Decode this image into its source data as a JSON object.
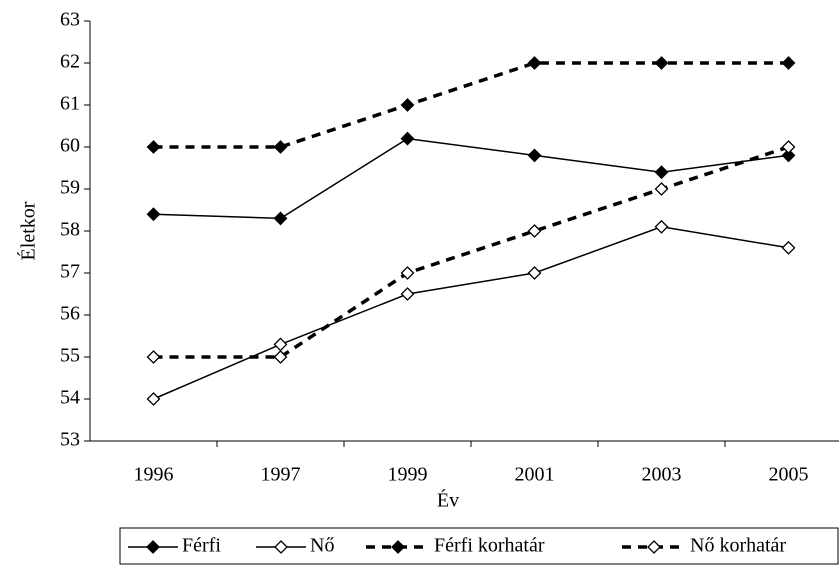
{
  "chart_data": {
    "type": "line",
    "categories": [
      "1996",
      "1997",
      "1999",
      "2001",
      "2003",
      "2005"
    ],
    "series": [
      {
        "name": "Férfi",
        "color": "#000000",
        "line_style": "solid",
        "marker_fill": "#000000",
        "values": [
          58.4,
          58.3,
          60.2,
          59.8,
          59.4,
          59.8
        ]
      },
      {
        "name": "Nő",
        "color": "#000000",
        "line_style": "solid",
        "marker_fill": "#ffffff",
        "values": [
          54.0,
          55.3,
          56.5,
          57.0,
          58.1,
          57.6
        ]
      },
      {
        "name": "Férfi korhatár",
        "color": "#000000",
        "line_style": "dashed",
        "marker_fill": "#000000",
        "values": [
          60,
          60,
          61,
          62,
          62,
          62
        ]
      },
      {
        "name": "Nő korhatár",
        "color": "#000000",
        "line_style": "dashed",
        "marker_fill": "#ffffff",
        "values": [
          55,
          55,
          57,
          58,
          59,
          60
        ]
      }
    ],
    "xlabel": "Év",
    "ylabel": "Életkor",
    "ylim": [
      53,
      63
    ],
    "yticks": [
      53,
      54,
      55,
      56,
      57,
      58,
      59,
      60,
      61,
      62,
      63
    ],
    "grid": false,
    "legend": "bottom"
  }
}
